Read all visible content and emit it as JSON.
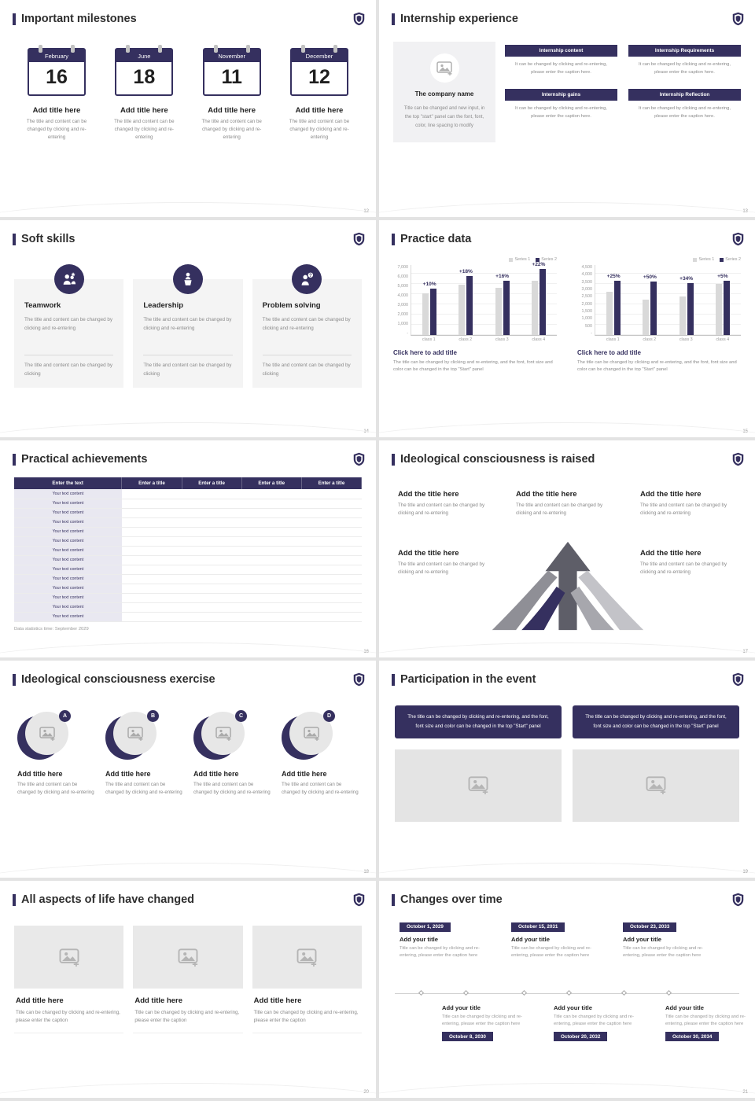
{
  "theme": {
    "accent": "#35305f",
    "page_bg": "#e3e3e3",
    "series1_color": "#d9d9d9",
    "series2_color": "#35305f"
  },
  "slides": {
    "milestones": {
      "title": "Important milestones",
      "page": "12",
      "items": [
        {
          "month": "February",
          "day": "16"
        },
        {
          "month": "June",
          "day": "18"
        },
        {
          "month": "November",
          "day": "11"
        },
        {
          "month": "December",
          "day": "12"
        }
      ],
      "item_title": "Add title here",
      "item_caption": "The title and content can be changed by clicking and re-entering"
    },
    "internship": {
      "title": "Internship experience",
      "page": "13",
      "company_name": "The company name",
      "company_body": "Title can be changed and new input, in the top \"start\" panel can the font, font, color, line spacing to modify",
      "blocks": [
        {
          "label": "Internship content"
        },
        {
          "label": "Internship Requirements"
        },
        {
          "label": "Internship gains"
        },
        {
          "label": "Internship Reflection"
        }
      ],
      "block_caption": "It can be changed by clicking and re-entering, please enter the caption here."
    },
    "softskills": {
      "title": "Soft skills",
      "page": "14",
      "cards": [
        {
          "name": "Teamwork"
        },
        {
          "name": "Leadership"
        },
        {
          "name": "Problem solving"
        }
      ],
      "card_body": "The title and content can be changed by clicking and re-entering",
      "card_footer": "The title and content can be changed by clicking"
    },
    "practice": {
      "title": "Practice data",
      "page": "15",
      "panel_title": "Click here to add title",
      "panel_caption": "The title can be changed by clicking and re-entering, and the font, font size and color can be changed in the top \"Start\" panel"
    },
    "achievements": {
      "title": "Practical achievements",
      "page": "16",
      "header_first": "Enter the text",
      "header_col": "Enter a title",
      "rows": [
        "Your text content",
        "Your text content",
        "Your text content",
        "Your text content",
        "Your text content",
        "Your text content",
        "Your text content",
        "Your text content",
        "Your text content",
        "Your text content",
        "Your text content",
        "Your text content",
        "Your text content",
        "Your text content"
      ],
      "footnote": "Data statistics time: September 2029"
    },
    "raised": {
      "title": "Ideological consciousness is raised",
      "page": "17",
      "block_title": "Add the title here",
      "block_caption": "The title and content can be changed by clicking and re-entering"
    },
    "exercise": {
      "title": "Ideological consciousness exercise",
      "page": "18",
      "items": [
        {
          "letter": "A"
        },
        {
          "letter": "B"
        },
        {
          "letter": "C"
        },
        {
          "letter": "D"
        }
      ],
      "item_title": "Add title here",
      "item_caption": "The title and content can be changed by clicking and re-entering"
    },
    "participation": {
      "title": "Participation in the event",
      "page": "19",
      "bar_text": "The title can be changed by clicking and re-entering, and the font, font size and color can be changed in the top \"Start\" panel"
    },
    "life": {
      "title": "All aspects of life have changed",
      "page": "20",
      "card_title": "Add title here",
      "card_caption": "Title can be changed by clicking and re-entering, please enter the caption"
    },
    "changes": {
      "title": "Changes over time",
      "page": "21",
      "item_title": "Add your title",
      "item_caption": "Title can be changed by clicking and re-entering, please enter the caption here",
      "top": [
        {
          "date": "October 1, 2029"
        },
        {
          "date": "October 15, 2031"
        },
        {
          "date": "October 23, 2033"
        }
      ],
      "bottom": [
        {
          "date": "October 8, 2030"
        },
        {
          "date": "October 20, 2032"
        },
        {
          "date": "October 30, 2034"
        }
      ]
    }
  },
  "chart_data": [
    {
      "type": "bar",
      "title": "Click here to add title",
      "categories": [
        "class 1",
        "class 2",
        "class 3",
        "class 4"
      ],
      "series": [
        {
          "name": "Series 1",
          "color": "#d9d9d9",
          "values": [
            4200,
            5000,
            4700,
            5400
          ]
        },
        {
          "name": "Series 2",
          "color": "#35305f",
          "values": [
            4620,
            5900,
            5450,
            6590
          ]
        }
      ],
      "labels": [
        "+10%",
        "+18%",
        "+16%",
        "+22%"
      ],
      "ylim": [
        0,
        7000
      ],
      "yticks": [
        "7,000",
        "6,000",
        "5,000",
        "4,000",
        "3,000",
        "2,000",
        "1,000",
        "-"
      ],
      "legend_position": "top-right",
      "grid": true
    },
    {
      "type": "bar",
      "title": "Click here to add title",
      "categories": [
        "class 1",
        "class 2",
        "class 3",
        "class 4"
      ],
      "series": [
        {
          "name": "Series 1",
          "color": "#d9d9d9",
          "values": [
            2800,
            2300,
            2500,
            3300
          ]
        },
        {
          "name": "Series 2",
          "color": "#35305f",
          "values": [
            3500,
            3450,
            3350,
            3465
          ]
        }
      ],
      "labels": [
        "+25%",
        "+50%",
        "+34%",
        "+5%"
      ],
      "ylim": [
        0,
        4500
      ],
      "yticks": [
        "4,500",
        "4,000",
        "3,500",
        "3,000",
        "2,500",
        "2,000",
        "1,500",
        "1,000",
        "500",
        "-"
      ],
      "legend_position": "top-right",
      "grid": true
    }
  ]
}
